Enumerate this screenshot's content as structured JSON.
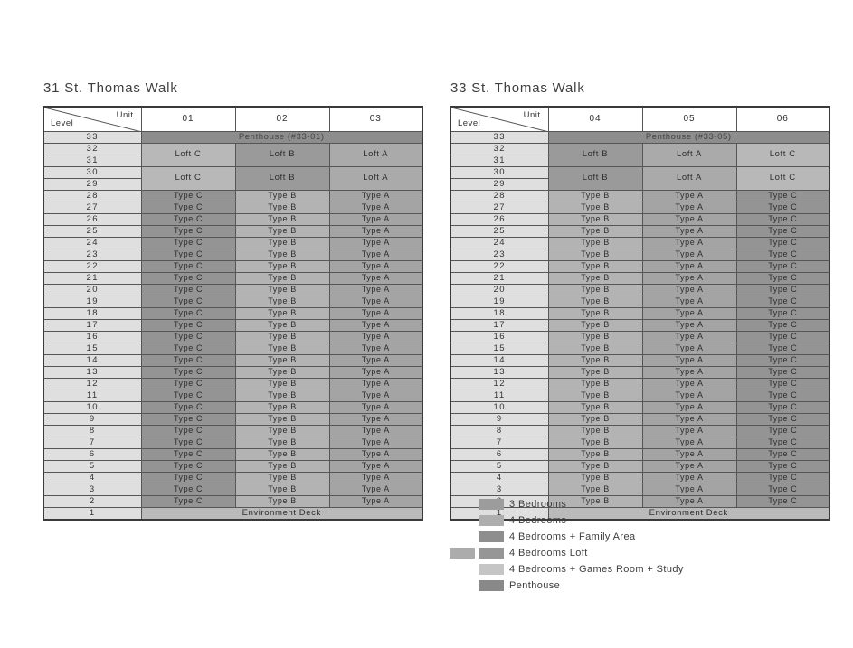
{
  "towers": [
    {
      "title": "31 St. Thomas Walk",
      "corner": {
        "top_right": "Unit",
        "bottom_left": "Level"
      },
      "unit_columns": [
        "01",
        "02",
        "03"
      ],
      "penthouse_row": {
        "level": "33",
        "label": "Penthouse (#33-01)"
      },
      "loft_rows": [
        {
          "levels": [
            "32",
            "31"
          ],
          "cells": [
            "Loft C",
            "Loft B",
            "Loft A"
          ]
        },
        {
          "levels": [
            "30",
            "29"
          ],
          "cells": [
            "Loft C",
            "Loft B",
            "Loft A"
          ]
        }
      ],
      "typical_rows": {
        "levels": [
          "28",
          "27",
          "26",
          "25",
          "24",
          "23",
          "22",
          "21",
          "20",
          "19",
          "18",
          "17",
          "16",
          "15",
          "14",
          "13",
          "12",
          "11",
          "10",
          "9",
          "8",
          "7",
          "6",
          "5",
          "4",
          "3",
          "2"
        ],
        "cells": [
          "Type C",
          "Type B",
          "Type A"
        ]
      },
      "deck_row": {
        "level": "1",
        "label": "Environment Deck"
      }
    },
    {
      "title": "33 St. Thomas Walk",
      "corner": {
        "top_right": "Unit",
        "bottom_left": "Level"
      },
      "unit_columns": [
        "04",
        "05",
        "06"
      ],
      "penthouse_row": {
        "level": "33",
        "label": "Penthouse (#33-05)"
      },
      "loft_rows": [
        {
          "levels": [
            "32",
            "31"
          ],
          "cells": [
            "Loft B",
            "Loft A",
            "Loft C"
          ]
        },
        {
          "levels": [
            "30",
            "29"
          ],
          "cells": [
            "Loft B",
            "Loft A",
            "Loft C"
          ]
        }
      ],
      "typical_rows": {
        "levels": [
          "28",
          "27",
          "26",
          "25",
          "24",
          "23",
          "22",
          "21",
          "20",
          "19",
          "18",
          "17",
          "16",
          "15",
          "14",
          "13",
          "12",
          "11",
          "10",
          "9",
          "8",
          "7",
          "6",
          "5",
          "4",
          "3",
          "2"
        ],
        "cells": [
          "Type B",
          "Type A",
          "Type C"
        ]
      },
      "deck_row": {
        "level": "1",
        "label": "Environment Deck"
      }
    }
  ],
  "cell_colors": {
    "Type A": "#a4a4a4",
    "Type B": "#b3b3b3",
    "Type C": "#949494",
    "Loft A": "#aaaaaa",
    "Loft B": "#9a9a9a",
    "Loft C": "#b8b8b8",
    "Penthouse": "#8d8d8d",
    "Environment Deck": "#bababa",
    "level_cell": "#dfdfdf",
    "grid_line": "#565656"
  },
  "legend": {
    "items": [
      {
        "label": "3 Bedrooms",
        "swatches": [
          "#9c9c9c"
        ]
      },
      {
        "label": "4 Bedrooms",
        "swatches": [
          "#aeaeae"
        ]
      },
      {
        "label": "4 Bedrooms + Family Area",
        "swatches": [
          "#8e8e8e"
        ]
      },
      {
        "label": "4 Bedrooms Loft",
        "swatches": [
          "#acacac",
          "#969696"
        ]
      },
      {
        "label": "4 Bedrooms + Games Room + Study",
        "swatches": [
          "#c5c5c5"
        ]
      },
      {
        "label": "Penthouse",
        "swatches": [
          "#898989"
        ]
      }
    ]
  }
}
